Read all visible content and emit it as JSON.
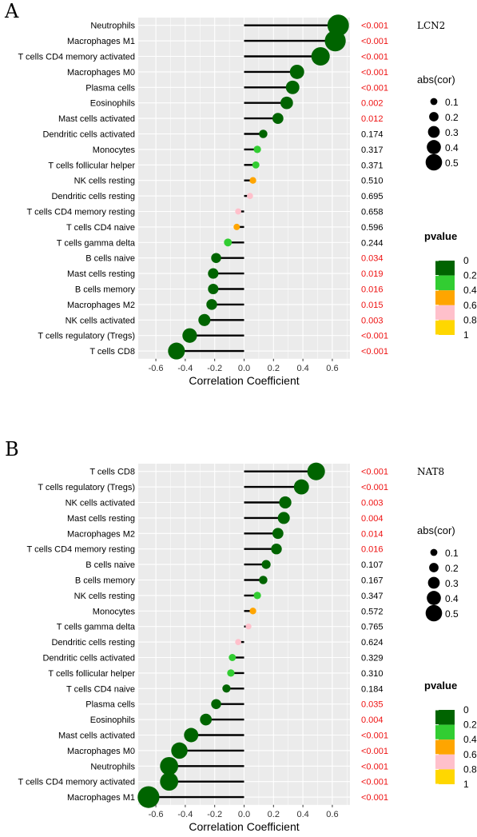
{
  "colors": {
    "significant_p": "#ee1111",
    "nonsignificant_p": "#000000",
    "panel_bg": "#ebebeb",
    "grid": "#ffffff",
    "stem": "#000000"
  },
  "legend": {
    "size_title": "abs(cor)",
    "size_labels": [
      "0.1",
      "0.2",
      "0.3",
      "0.4",
      "0.5"
    ],
    "size_values": [
      0.1,
      0.2,
      0.3,
      0.4,
      0.5
    ],
    "color_title": "pvalue",
    "color_labels": [
      "0",
      "0.2",
      "0.4",
      "0.6",
      "0.8",
      "1"
    ],
    "color_stops": [
      "#006400",
      "#32cd32",
      "#ffa500",
      "#ffc0cb",
      "#ffd700"
    ]
  },
  "chart_data": [
    {
      "type": "lollipop",
      "panel": "A",
      "gene": "LCN2",
      "xlabel": "Correlation Coefficient",
      "xlim": [
        -0.72,
        0.72
      ],
      "xticks": [
        "-0.6",
        "-0.4",
        "-0.2",
        "0.0",
        "0.2",
        "0.4",
        "0.6"
      ],
      "categories": [
        "Neutrophils",
        "Macrophages M1",
        "T cells CD4 memory activated",
        "Macrophages M0",
        "Plasma cells",
        "Eosinophils",
        "Mast cells activated",
        "Dendritic cells activated",
        "Monocytes",
        "T cells follicular helper",
        "NK cells resting",
        "Dendritic cells resting",
        "T cells CD4 memory resting",
        "T cells CD4 naive",
        "T cells gamma delta",
        "B cells naive",
        "Mast cells resting",
        "B cells memory",
        "Macrophages M2",
        "NK cells activated",
        "T cells regulatory (Tregs)",
        "T cells CD8"
      ],
      "values": [
        0.64,
        0.62,
        0.52,
        0.36,
        0.33,
        0.29,
        0.23,
        0.13,
        0.09,
        0.08,
        0.06,
        0.04,
        -0.04,
        -0.05,
        -0.11,
        -0.19,
        -0.21,
        -0.21,
        -0.22,
        -0.27,
        -0.37,
        -0.46
      ],
      "pvalue_labels": [
        "<0.001",
        "<0.001",
        "<0.001",
        "<0.001",
        "<0.001",
        "0.002",
        "0.012",
        "0.174",
        "0.317",
        "0.371",
        "0.510",
        "0.695",
        "0.658",
        "0.596",
        "0.244",
        "0.034",
        "0.019",
        "0.016",
        "0.015",
        "0.003",
        "<0.001",
        "<0.001"
      ],
      "pvalues": [
        0.0005,
        0.0005,
        0.0005,
        0.0005,
        0.0005,
        0.002,
        0.012,
        0.174,
        0.317,
        0.371,
        0.51,
        0.695,
        0.658,
        0.596,
        0.244,
        0.034,
        0.019,
        0.016,
        0.015,
        0.003,
        0.0005,
        0.0005
      ]
    },
    {
      "type": "lollipop",
      "panel": "B",
      "gene": "NAT8",
      "xlabel": "Correlation Coefficient",
      "xlim": [
        -0.72,
        0.72
      ],
      "xticks": [
        "-0.6",
        "-0.4",
        "-0.2",
        "0.0",
        "0.2",
        "0.4",
        "0.6"
      ],
      "categories": [
        "T cells CD8",
        "T cells regulatory (Tregs)",
        "NK cells activated",
        "Mast cells resting",
        "Macrophages M2",
        "T cells CD4 memory resting",
        "B cells naive",
        "B cells memory",
        "NK cells resting",
        "Monocytes",
        "T cells gamma delta",
        "Dendritic cells resting",
        "Dendritic cells activated",
        "T cells follicular helper",
        "T cells CD4 naive",
        "Plasma cells",
        "Eosinophils",
        "Mast cells activated",
        "Macrophages M0",
        "Neutrophils",
        "T cells CD4 memory activated",
        "Macrophages M1"
      ],
      "values": [
        0.49,
        0.39,
        0.28,
        0.27,
        0.23,
        0.22,
        0.15,
        0.13,
        0.09,
        0.06,
        0.03,
        -0.04,
        -0.08,
        -0.09,
        -0.12,
        -0.19,
        -0.26,
        -0.36,
        -0.44,
        -0.51,
        -0.51,
        -0.65
      ],
      "pvalue_labels": [
        "<0.001",
        "<0.001",
        "0.003",
        "0.004",
        "0.014",
        "0.016",
        "0.107",
        "0.167",
        "0.347",
        "0.572",
        "0.765",
        "0.624",
        "0.329",
        "0.310",
        "0.184",
        "0.035",
        "0.004",
        "<0.001",
        "<0.001",
        "<0.001",
        "<0.001",
        "<0.001"
      ],
      "pvalues": [
        0.0005,
        0.0005,
        0.003,
        0.004,
        0.014,
        0.016,
        0.107,
        0.167,
        0.347,
        0.572,
        0.765,
        0.624,
        0.329,
        0.31,
        0.184,
        0.035,
        0.004,
        0.0005,
        0.0005,
        0.0005,
        0.0005,
        0.0005
      ]
    }
  ]
}
